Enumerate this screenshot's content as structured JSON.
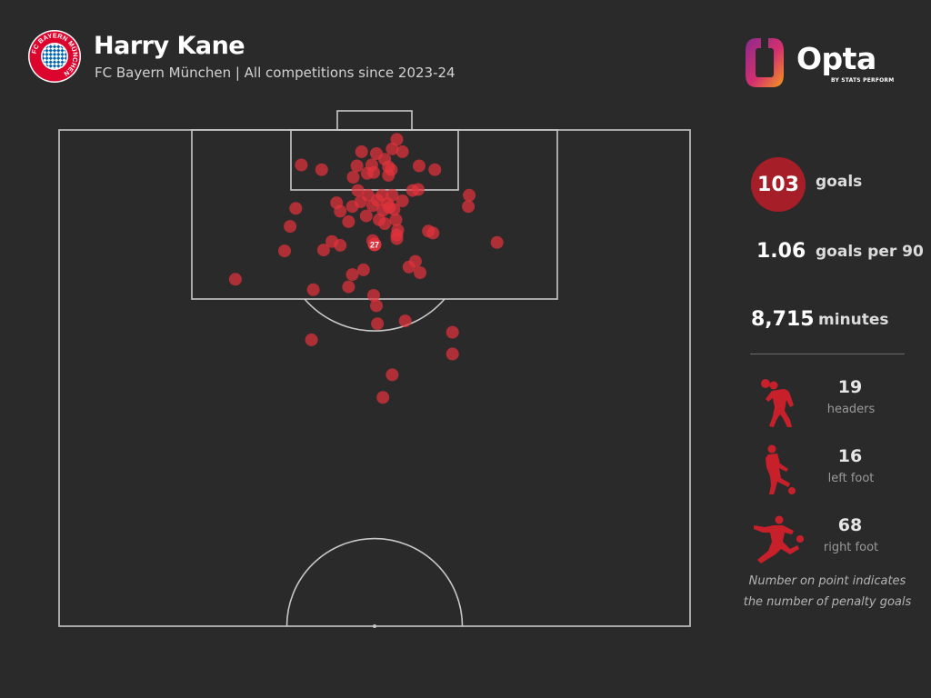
{
  "header": {
    "player_name": "Harry Kane",
    "subtitle": "FC Bayern München | All competitions since 2023-24",
    "club_badge": {
      "icon": "fc-bayern-crest-icon",
      "text": "FC BAYERN MÜNCHEN"
    }
  },
  "brand": {
    "icon": "opta-logo-icon",
    "name": "Opta",
    "sub": "BY STATS PERFORM"
  },
  "stats": {
    "goals": {
      "value": "103",
      "label": "goals"
    },
    "goals_per_90": {
      "value": "1.06",
      "label": "goals per 90"
    },
    "minutes": {
      "value": "8,715",
      "label": "minutes"
    }
  },
  "goal_types": [
    {
      "icon": "header-silhouette-icon",
      "value": "19",
      "label": "headers"
    },
    {
      "icon": "left-foot-silhouette-icon",
      "value": "16",
      "label": "left foot"
    },
    {
      "icon": "right-foot-silhouette-icon",
      "value": "68",
      "label": "right foot"
    }
  ],
  "footnote": {
    "line1": "Number on point indicates",
    "line2": "the number of penalty goals"
  },
  "colors": {
    "background": "#2a2a2a",
    "goal_point": "#e3323c",
    "accent": "#a61e28",
    "pitch_lines": "#c8c8c8"
  },
  "chart_data": {
    "type": "scatter",
    "title": "",
    "xlabel": "",
    "ylabel": "",
    "units": "metres (x: across pitch, 0 = left touchline; y: distance from goal line)",
    "xlim": [
      0,
      68
    ],
    "ylim": [
      0,
      52.5
    ],
    "grid": false,
    "penalty_goals": 27,
    "penalty_spot_label": "27",
    "points": [
      [
        36.4,
        1.0
      ],
      [
        35.9,
        2.0
      ],
      [
        37.0,
        2.3
      ],
      [
        32.6,
        2.3
      ],
      [
        34.2,
        2.5
      ],
      [
        35.1,
        3.1
      ],
      [
        26.1,
        3.7
      ],
      [
        32.1,
        3.8
      ],
      [
        38.8,
        3.8
      ],
      [
        33.7,
        3.7
      ],
      [
        35.8,
        4.2
      ],
      [
        40.5,
        4.2
      ],
      [
        35.5,
        3.9
      ],
      [
        28.3,
        4.2
      ],
      [
        33.2,
        4.6
      ],
      [
        35.5,
        4.8
      ],
      [
        31.7,
        5.0
      ],
      [
        33.9,
        4.5
      ],
      [
        38.7,
        6.3
      ],
      [
        34.8,
        6.9
      ],
      [
        32.2,
        6.4
      ],
      [
        38.1,
        6.4
      ],
      [
        33.3,
        6.9
      ],
      [
        44.2,
        6.9
      ],
      [
        34.3,
        7.4
      ],
      [
        35.4,
        7.8
      ],
      [
        35.9,
        6.9
      ],
      [
        29.9,
        7.7
      ],
      [
        32.5,
        7.6
      ],
      [
        33.8,
        8.0
      ],
      [
        37.0,
        7.5
      ],
      [
        25.5,
        8.3
      ],
      [
        31.6,
        8.1
      ],
      [
        35.6,
        8.2
      ],
      [
        36.1,
        8.4
      ],
      [
        30.3,
        8.6
      ],
      [
        34.9,
        8.5
      ],
      [
        44.1,
        8.1
      ],
      [
        33.1,
        9.1
      ],
      [
        34.5,
        9.5
      ],
      [
        36.3,
        9.5
      ],
      [
        31.2,
        9.7
      ],
      [
        35.1,
        9.9
      ],
      [
        24.9,
        10.2
      ],
      [
        36.5,
        10.6
      ],
      [
        39.8,
        10.7
      ],
      [
        40.3,
        10.9
      ],
      [
        36.4,
        11.5
      ],
      [
        29.4,
        11.8
      ],
      [
        47.2,
        11.9
      ],
      [
        30.3,
        12.2
      ],
      [
        24.3,
        12.8
      ],
      [
        28.5,
        12.7
      ],
      [
        36.4,
        11.1
      ],
      [
        33.8,
        11.7
      ],
      [
        38.4,
        13.9
      ],
      [
        37.7,
        14.5
      ],
      [
        32.8,
        14.8
      ],
      [
        38.9,
        15.1
      ],
      [
        31.6,
        15.3
      ],
      [
        19.0,
        15.8
      ],
      [
        31.2,
        16.6
      ],
      [
        27.4,
        16.9
      ],
      [
        33.9,
        17.5
      ],
      [
        34.2,
        18.6
      ],
      [
        37.3,
        20.2
      ],
      [
        34.3,
        20.5
      ],
      [
        42.4,
        21.4
      ],
      [
        27.2,
        22.2
      ],
      [
        42.4,
        23.7
      ],
      [
        35.9,
        25.9
      ],
      [
        34.9,
        28.3
      ]
    ]
  }
}
